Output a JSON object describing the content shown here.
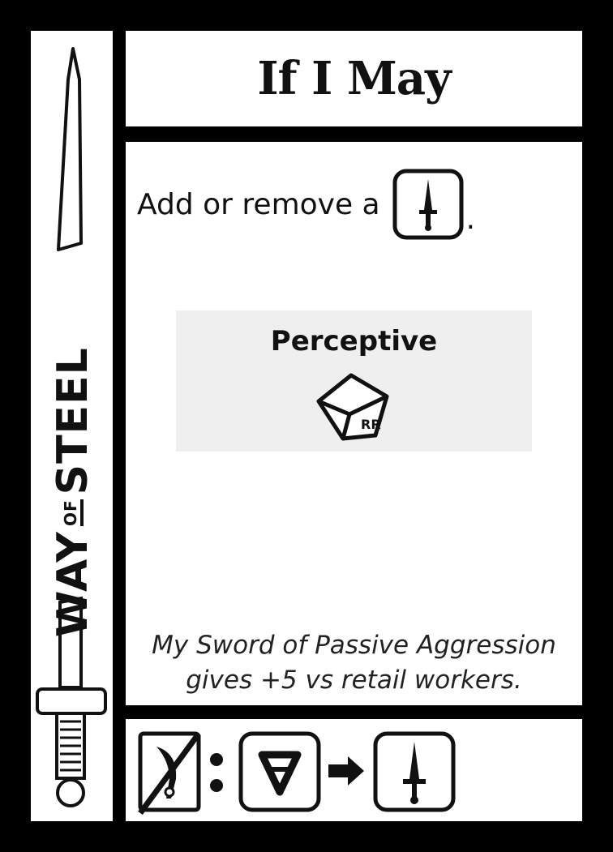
{
  "card": {
    "title": "If I May",
    "rule_text": "Add or remove a",
    "rule_end": ".",
    "feature_label": "Perceptive",
    "die_mark": "RR",
    "flavor_line1": "My Sword of Passive Aggression",
    "flavor_line2": "gives +5 vs retail workers.",
    "cost_separator": ":",
    "cost_a_symbol": "A"
  },
  "side": {
    "word1": "WAY",
    "word2": "OF",
    "word3": "STEEL"
  },
  "icons": {
    "sword_token": "sword-token-icon",
    "die": "die-icon",
    "disarmed_token": "disarmed-token-icon",
    "arrow": "arrow-right-icon",
    "side_sword": "longsword-icon"
  },
  "colors": {
    "background": "#000000",
    "panel": "#ffffff",
    "feature_box": "#efefef"
  }
}
